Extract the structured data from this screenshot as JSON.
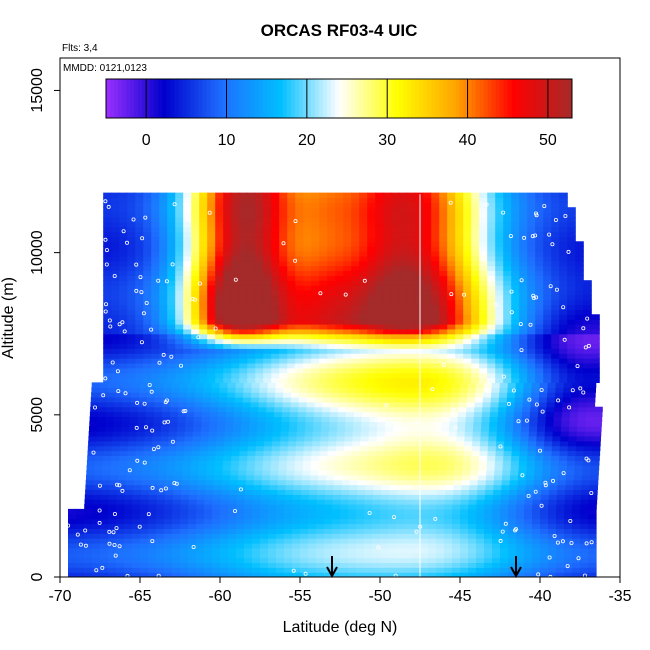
{
  "chart_data": {
    "type": "heatmap",
    "title": "ORCAS RF03-4 UIC",
    "annotations": [
      "Flts: 3,4",
      "MMDD: 0121,0123"
    ],
    "xlabel": "Latitude (deg N)",
    "ylabel": "Altitude (m)",
    "xlim": [
      -70,
      -35
    ],
    "ylim": [
      0,
      16000
    ],
    "x_ticks": [
      "-70",
      "-65",
      "-60",
      "-55",
      "-50",
      "-45",
      "-40",
      "-35"
    ],
    "y_ticks": [
      "0",
      "5000",
      "10000",
      "15000"
    ],
    "colorbar": {
      "range": [
        -5,
        53
      ],
      "ticks": [
        "0",
        "10",
        "20",
        "30",
        "40",
        "50"
      ],
      "colors": [
        "#9b30ff",
        "#0000cd",
        "#1e6fff",
        "#00bfff",
        "#ffffff",
        "#ffff00",
        "#ffa500",
        "#ff0000",
        "#a52a2a"
      ]
    },
    "vertical_line_lat": -47.5,
    "arrows_lat": [
      -53,
      -41.5
    ],
    "field_extent": {
      "lat_min": -69.5,
      "lat_max": -36.5,
      "alt_max": 11800
    },
    "core_maxima": [
      {
        "lat": -59.5,
        "alt": 8300,
        "value": 50
      },
      {
        "lat": -48.5,
        "alt": 10500,
        "value": 45
      }
    ]
  },
  "labels": {
    "title": "ORCAS RF03-4 UIC",
    "flights": "Flts: 3,4",
    "dates": "MMDD: 0121,0123",
    "xlabel": "Latitude (deg N)",
    "ylabel": "Altitude (m)"
  }
}
